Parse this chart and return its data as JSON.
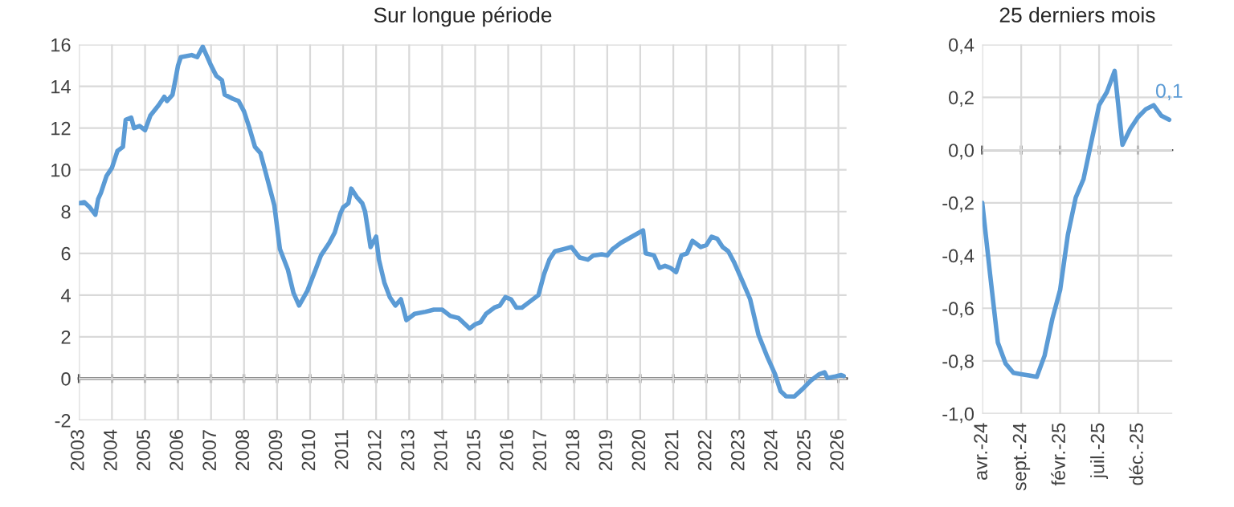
{
  "chart_data": [
    {
      "type": "line",
      "title": "Sur longue période",
      "grid": true,
      "marker": "none",
      "line_style": "solid",
      "x": [
        "2003-01",
        "2003-03",
        "2003-05",
        "2003-07",
        "2003-08",
        "2003-09",
        "2003-11",
        "2004-01",
        "2004-03",
        "2004-05",
        "2004-06",
        "2004-08",
        "2004-09",
        "2004-11",
        "2005-01",
        "2005-03",
        "2005-06",
        "2005-08",
        "2005-09",
        "2005-11",
        "2006-01",
        "2006-02",
        "2006-06",
        "2006-08",
        "2006-10",
        "2006-11",
        "2007-01",
        "2007-03",
        "2007-05",
        "2007-06",
        "2007-09",
        "2007-11",
        "2008-01",
        "2008-03",
        "2008-05",
        "2008-07",
        "2008-09",
        "2008-12",
        "2009-02",
        "2009-05",
        "2009-07",
        "2009-09",
        "2009-12",
        "2010-03",
        "2010-05",
        "2010-08",
        "2010-10",
        "2010-12",
        "2011-01",
        "2011-03",
        "2011-04",
        "2011-06",
        "2011-08",
        "2011-09",
        "2011-11",
        "2012-01",
        "2012-02",
        "2012-04",
        "2012-06",
        "2012-08",
        "2012-10",
        "2012-12",
        "2013-03",
        "2013-07",
        "2013-10",
        "2014-01",
        "2014-04",
        "2014-07",
        "2014-11",
        "2015-01",
        "2015-03",
        "2015-05",
        "2015-08",
        "2015-10",
        "2015-12",
        "2016-02",
        "2016-04",
        "2016-06",
        "2016-09",
        "2016-12",
        "2017-02",
        "2017-04",
        "2017-06",
        "2017-09",
        "2017-12",
        "2018-03",
        "2018-06",
        "2018-08",
        "2018-11",
        "2019-01",
        "2019-03",
        "2019-06",
        "2019-10",
        "2020-02",
        "2020-03",
        "2020-06",
        "2020-08",
        "2020-10",
        "2020-12",
        "2021-02",
        "2021-04",
        "2021-06",
        "2021-08",
        "2021-11",
        "2022-01",
        "2022-03",
        "2022-05",
        "2022-07",
        "2022-09",
        "2022-11",
        "2023-02",
        "2023-05",
        "2023-08",
        "2023-11",
        "2024-02",
        "2024-04",
        "2024-06",
        "2024-09",
        "2024-12",
        "2025-03",
        "2025-06",
        "2025-08",
        "2025-09",
        "2025-12",
        "2026-02",
        "2026-03"
      ],
      "series": [
        {
          "color": "#5b9bd5",
          "values": [
            8.4,
            8.45,
            8.2,
            7.85,
            8.6,
            8.9,
            9.7,
            10.1,
            10.9,
            11.1,
            12.4,
            12.5,
            12.0,
            12.1,
            11.9,
            12.6,
            13.1,
            13.5,
            13.3,
            13.6,
            15.0,
            15.4,
            15.5,
            15.4,
            15.9,
            15.6,
            15.0,
            14.5,
            14.3,
            13.6,
            13.4,
            13.3,
            12.8,
            12.0,
            11.1,
            10.8,
            9.8,
            8.3,
            6.2,
            5.2,
            4.1,
            3.5,
            4.2,
            5.2,
            5.9,
            6.5,
            7.0,
            7.9,
            8.2,
            8.4,
            9.1,
            8.7,
            8.4,
            8.0,
            6.3,
            6.8,
            5.7,
            4.6,
            3.9,
            3.5,
            3.8,
            2.8,
            3.1,
            3.2,
            3.3,
            3.3,
            3.0,
            2.9,
            2.4,
            2.6,
            2.7,
            3.1,
            3.4,
            3.5,
            3.9,
            3.8,
            3.4,
            3.4,
            3.7,
            4.0,
            5.0,
            5.7,
            6.1,
            6.2,
            6.3,
            5.8,
            5.7,
            5.9,
            5.95,
            5.9,
            6.2,
            6.5,
            6.8,
            7.1,
            6.0,
            5.9,
            5.3,
            5.4,
            5.3,
            5.1,
            5.9,
            6.0,
            6.6,
            6.3,
            6.4,
            6.8,
            6.7,
            6.3,
            6.1,
            5.6,
            4.7,
            3.8,
            2.1,
            1.1,
            0.2,
            -0.6,
            -0.85,
            -0.86,
            -0.5,
            -0.1,
            0.2,
            0.3,
            0.03,
            0.1,
            0.17,
            0.12
          ]
        }
      ],
      "xlim": [
        "2003-01",
        "2026-04"
      ],
      "xticks": [
        "2003",
        "2004",
        "2005",
        "2006",
        "2007",
        "2008",
        "2009",
        "2010",
        "2011",
        "2012",
        "2013",
        "2014",
        "2015",
        "2016",
        "2017",
        "2018",
        "2019",
        "2020",
        "2021",
        "2022",
        "2023",
        "2024",
        "2025",
        "2026"
      ],
      "ylim": [
        -2,
        16
      ],
      "yticks": [
        -2,
        0,
        2,
        4,
        6,
        8,
        10,
        12,
        14,
        16
      ]
    },
    {
      "type": "line",
      "title": "25 derniers mois",
      "grid": true,
      "marker": "none",
      "line_style": "solid",
      "categories": [
        "avr.-24",
        null,
        null,
        null,
        null,
        "sept.-24",
        null,
        null,
        null,
        null,
        "févr.-25",
        null,
        null,
        null,
        null,
        "juil.-25",
        null,
        null,
        null,
        null,
        "déc.-25",
        null,
        null,
        null,
        null
      ],
      "series": [
        {
          "color": "#5b9bd5",
          "values": [
            -0.2,
            -0.47,
            -0.73,
            -0.81,
            -0.845,
            -0.85,
            -0.855,
            -0.86,
            -0.78,
            -0.64,
            -0.53,
            -0.32,
            -0.18,
            -0.11,
            0.03,
            0.17,
            0.22,
            0.3,
            0.02,
            0.08,
            0.125,
            0.155,
            0.17,
            0.13,
            0.115
          ],
          "value_labels": [
            null,
            null,
            null,
            null,
            null,
            null,
            null,
            null,
            null,
            null,
            null,
            null,
            null,
            null,
            null,
            null,
            null,
            null,
            null,
            null,
            null,
            null,
            null,
            null,
            "0,1"
          ]
        }
      ],
      "ylim": [
        -1.0,
        0.4
      ],
      "yticks": [
        {
          "value": -1.0,
          "label": "-1,0"
        },
        {
          "value": -0.8,
          "label": "-0,8"
        },
        {
          "value": -0.6,
          "label": "-0,6"
        },
        {
          "value": -0.4,
          "label": "-0,4"
        },
        {
          "value": -0.2,
          "label": "-0,2"
        },
        {
          "value": 0.0,
          "label": "0,0"
        },
        {
          "value": 0.2,
          "label": "0,2"
        },
        {
          "value": 0.4,
          "label": "0,4"
        }
      ]
    }
  ]
}
